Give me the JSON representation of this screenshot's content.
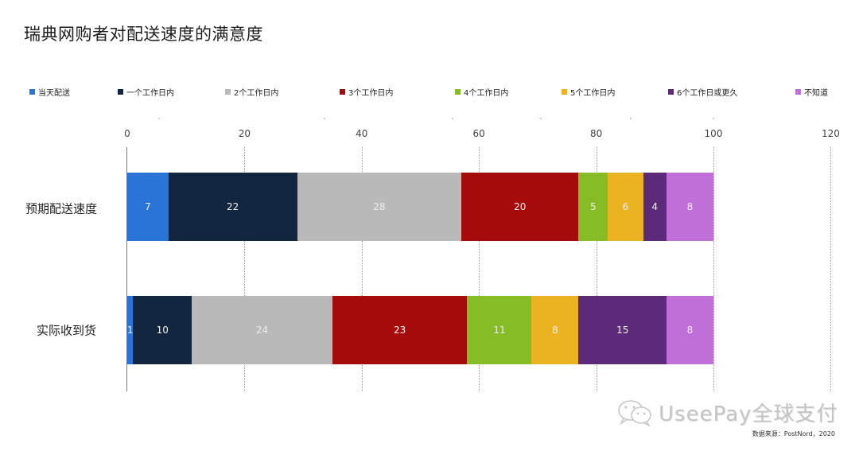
{
  "title": "瑞典网购者对配送速度的满意度",
  "legend": [
    {
      "label": "当天配送",
      "color": "#2a74d8"
    },
    {
      "label": "一个工作日内",
      "color": "#12263f"
    },
    {
      "label": "2个工作日内",
      "color": "#b9b9b9"
    },
    {
      "label": "3个工作日内",
      "color": "#a50b0b"
    },
    {
      "label": "4个工作日内",
      "color": "#86bc26"
    },
    {
      "label": "5个工作日内",
      "color": "#ebb321"
    },
    {
      "label": "6个工作日或更久",
      "color": "#5c2a78"
    },
    {
      "label": "不知道",
      "color": "#c06ed8"
    }
  ],
  "axis": {
    "ticks": [
      "0",
      "20",
      "40",
      "60",
      "80",
      "100",
      "120"
    ]
  },
  "rows": [
    {
      "label": "预期配送速度"
    },
    {
      "label": "实际收到货"
    }
  ],
  "watermark": "UseePay全球支付",
  "source": "数据来源：PostNord，2020",
  "chart_data": {
    "type": "bar",
    "orientation": "horizontal",
    "stacked": true,
    "title": "瑞典网购者对配送速度的满意度",
    "categories": [
      "预期配送速度",
      "实际收到货"
    ],
    "series": [
      {
        "name": "当天配送",
        "color": "#2a74d8",
        "values": [
          7,
          1
        ]
      },
      {
        "name": "一个工作日内",
        "color": "#12263f",
        "values": [
          22,
          10
        ]
      },
      {
        "name": "2个工作日内",
        "color": "#b9b9b9",
        "values": [
          28,
          24
        ]
      },
      {
        "name": "3个工作日内",
        "color": "#a50b0b",
        "values": [
          20,
          23
        ]
      },
      {
        "name": "4个工作日内",
        "color": "#86bc26",
        "values": [
          5,
          11
        ]
      },
      {
        "name": "5个工作日内",
        "color": "#ebb321",
        "values": [
          6,
          8
        ]
      },
      {
        "name": "6个工作日或更久",
        "color": "#5c2a78",
        "values": [
          4,
          15
        ]
      },
      {
        "name": "不知道",
        "color": "#c06ed8",
        "values": [
          8,
          8
        ]
      }
    ],
    "xlabel": "",
    "ylabel": "",
    "xlim": [
      0,
      120
    ],
    "xticks": [
      0,
      20,
      40,
      60,
      80,
      100,
      120
    ],
    "grid": "vertical dotted",
    "legend_position": "top",
    "data_labels": true,
    "source": "数据来源：PostNord，2020"
  }
}
